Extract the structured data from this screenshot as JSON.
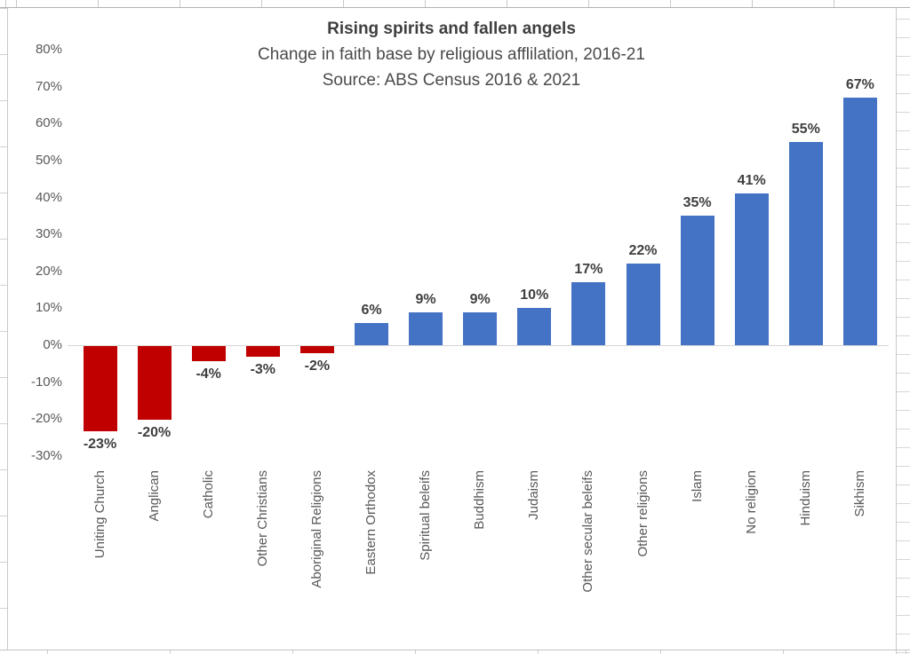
{
  "chart_data": {
    "type": "bar",
    "title": "Rising spirits and fallen angels",
    "subtitle": "Change in faith base by religious afflilation, 2016-21",
    "source": "Source: ABS Census 2016 & 2021",
    "categories": [
      "Uniting Church",
      "Anglican",
      "Catholic",
      "Other Christians",
      "Aboriginal Religions",
      "Eastern Orthodox",
      "Spiritual beleifs",
      "Buddhism",
      "Judaism",
      "Other secular beleifs",
      "Other religions",
      "Islam",
      "No religion",
      "Hinduism",
      "Sikhism"
    ],
    "values": [
      -23,
      -20,
      -4,
      -3,
      -2,
      6,
      9,
      9,
      10,
      17,
      22,
      35,
      41,
      55,
      67
    ],
    "value_labels": [
      "-23%",
      "-20%",
      "-4%",
      "-3%",
      "-2%",
      "6%",
      "9%",
      "9%",
      "10%",
      "17%",
      "22%",
      "35%",
      "41%",
      "55%",
      "67%"
    ],
    "colors": {
      "negative_bar": "#c00000",
      "positive_bar": "#4472c4"
    },
    "y_axis": {
      "tick_values": [
        80,
        70,
        60,
        50,
        40,
        30,
        20,
        10,
        0,
        -10,
        -20,
        -30
      ],
      "tick_labels": [
        "80%",
        "70%",
        "60%",
        "50%",
        "40%",
        "30%",
        "20%",
        "10%",
        "0%",
        "-10%",
        "-20%",
        "-30%"
      ],
      "range": [
        -30,
        80
      ]
    },
    "xlabel": "",
    "ylabel": "",
    "legend": "none",
    "gridlines": "off",
    "orientation": "vertical"
  }
}
